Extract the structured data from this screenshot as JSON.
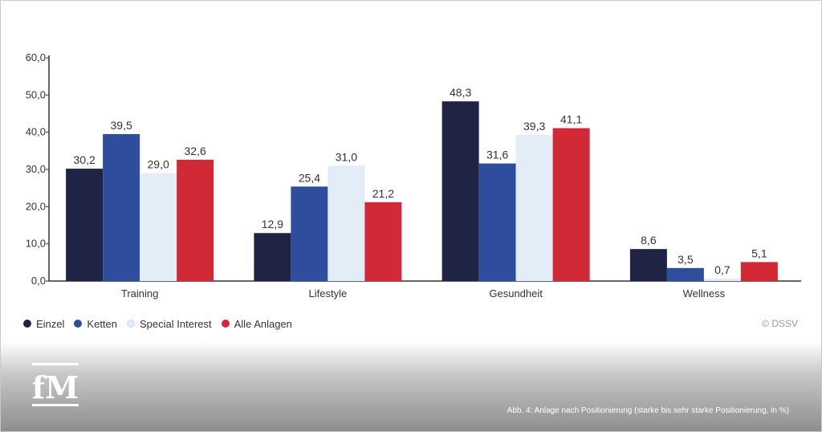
{
  "chart_data": {
    "type": "bar",
    "categories": [
      "Training",
      "Lifestyle",
      "Gesundheit",
      "Wellness"
    ],
    "series": [
      {
        "name": "Einzel",
        "color": "#1f2444",
        "values": [
          30.2,
          12.9,
          48.3,
          8.6
        ],
        "labels": [
          "30,2",
          "12,9",
          "48,3",
          "8,6"
        ]
      },
      {
        "name": "Ketten",
        "color": "#2e4d9c",
        "values": [
          39.5,
          25.4,
          31.6,
          3.5
        ],
        "labels": [
          "39,5",
          "25,4",
          "31,6",
          "3,5"
        ]
      },
      {
        "name": "Special Interest",
        "color": "#e2edf8",
        "values": [
          29.0,
          31.0,
          39.3,
          0.7
        ],
        "labels": [
          "29,0",
          "31,0",
          "39,3",
          "0,7"
        ]
      },
      {
        "name": "Alle Anlagen",
        "color": "#d12a36",
        "values": [
          32.6,
          21.2,
          41.1,
          5.1
        ],
        "labels": [
          "32,6",
          "21,2",
          "41,1",
          "5,1"
        ]
      }
    ],
    "y_ticks": [
      0,
      10,
      20,
      30,
      40,
      50,
      60
    ],
    "y_tick_labels": [
      "0,0",
      "10,0",
      "20,0",
      "30,0",
      "40,0",
      "50,0",
      "60,0"
    ],
    "ylim": [
      0,
      60
    ],
    "grid": false,
    "legend_position": "bottom-left",
    "xlabel": "",
    "ylabel": ""
  },
  "copyright": "© DSSV",
  "caption": "Abb. 4: Anlage nach Positionierung (starke bis sehr starke Positionierung, in %)",
  "logo_text": "fM"
}
